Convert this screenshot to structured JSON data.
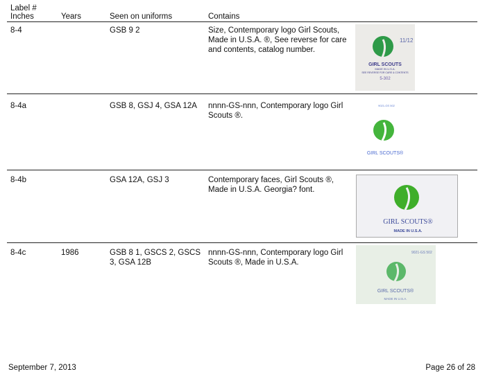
{
  "header": {
    "col1_line1": "Label #",
    "col1_line2": "Inches",
    "col2": "Years",
    "col3": "Seen on uniforms",
    "col4": "Contains"
  },
  "rows": [
    {
      "label": "8-4",
      "years": "",
      "uniforms": "GSB 9 2",
      "contains": "Size, Contemporary logo Girl Scouts, Made in U.S.A. ®, See reverse for care and contents, catalog number.",
      "image": {
        "brand": "GIRL SCOUTS",
        "size": "11/12",
        "made": "MADE IN U.S.A.",
        "note": "SEE REVERSE FOR CARE & CONTENTS",
        "catalog": "5-302"
      }
    },
    {
      "label": "8-4a",
      "years": "",
      "uniforms": "GSB 8, GSJ 4, GSA 12A",
      "contains": "nnnn-GS-nnn, Contemporary logo Girl Scouts ®.",
      "image": {
        "brand": "GIRL SCOUTS®",
        "catalog": "9021-GS 502"
      }
    },
    {
      "label": "8-4b",
      "years": "",
      "uniforms": "GSA 12A, GSJ 3",
      "contains": "Contemporary faces, Girl Scouts ®, Made in U.S.A. Georgia? font.",
      "image": {
        "brand": "GIRL SCOUTS®",
        "made": "MADE IN U.S.A."
      }
    },
    {
      "label": "8-4c",
      "years": "1986",
      "uniforms": "GSB 8 1, GSCS 2, GSCS 3, GSA 12B",
      "contains": "nnnn-GS-nnn, Contemporary logo Girl Scouts ®, Made in U.S.A.",
      "image": {
        "brand": "GIRL SCOUTS®",
        "made": "MADE IN U.S.A.",
        "catalog": "9021-GS 502"
      }
    }
  ],
  "footer": {
    "date": "September 7, 2013",
    "page": "Page 26 of 28"
  },
  "colors": {
    "logo_green": "#3fa93a",
    "label_text_blue": "#4a5aa8"
  }
}
